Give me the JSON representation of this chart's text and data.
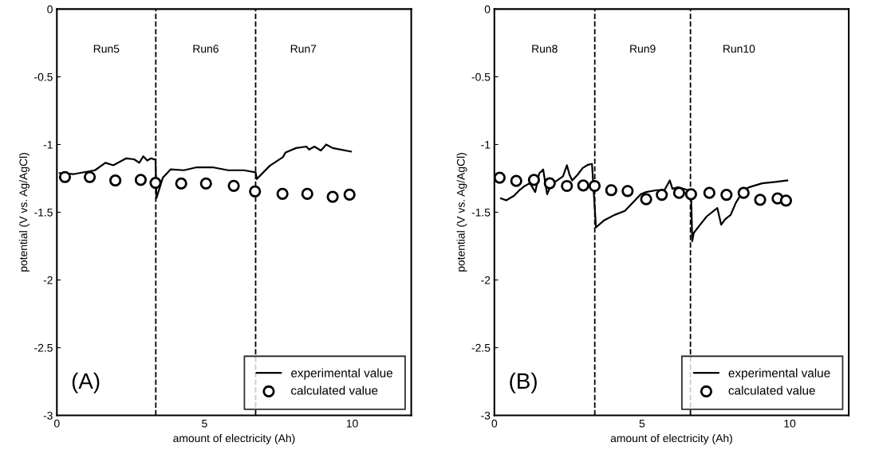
{
  "chart_data": [
    {
      "type": "line",
      "xlabel": "amount of electricity (Ah)",
      "ylabel": "potential (V vs. Ag/AgCl)",
      "xlim": [
        0,
        12
      ],
      "xticks": [
        0,
        5,
        10
      ],
      "ylim": [
        -3,
        0
      ],
      "yticks": [
        -3,
        -2.5,
        -2,
        -1.5,
        -1,
        -0.5,
        0
      ],
      "grid": false,
      "legend": "bottom right",
      "ref_lines": [
        {
          "axis": "x",
          "value": 3.35,
          "color": "#000000",
          "line_style": "dashed"
        },
        {
          "axis": "x",
          "value": 6.73,
          "color": "#000000",
          "line_style": "dashed"
        }
      ],
      "annotations": [
        "Run5",
        "Run6",
        "Run7",
        "(A)"
      ],
      "series": [
        {
          "name": "experimental value",
          "color": "#000000",
          "marker": "none",
          "line_style": "solid",
          "x": [
            0.097,
            0.583,
            1.29,
            1.644,
            1.91,
            2.35,
            2.617,
            2.79,
            2.926,
            3.06,
            3.19,
            3.34,
            3.37,
            3.59,
            3.855,
            4.3,
            4.74,
            5.27,
            5.8,
            6.33,
            6.73,
            6.77,
            7.21,
            7.66,
            7.74,
            8.1,
            8.45,
            8.54,
            8.72,
            8.94,
            9.12,
            9.34,
            9.96
          ],
          "values": [
            -1.211,
            -1.218,
            -1.19,
            -1.135,
            -1.153,
            -1.102,
            -1.109,
            -1.135,
            -1.087,
            -1.118,
            -1.102,
            -1.113,
            -1.397,
            -1.244,
            -1.183,
            -1.19,
            -1.168,
            -1.168,
            -1.19,
            -1.19,
            -1.205,
            -1.255,
            -1.157,
            -1.092,
            -1.059,
            -1.026,
            -1.015,
            -1.037,
            -1.015,
            -1.044,
            -1.0,
            -1.026,
            -1.052
          ]
        },
        {
          "name": "calculated value",
          "type": "scatter",
          "color": "#000000",
          "marker": "circle",
          "x": [
            0.274,
            1.114,
            1.98,
            2.84,
            3.34,
            4.21,
            5.05,
            5.99,
            6.71,
            7.64,
            8.48,
            9.34,
            9.91
          ],
          "values": [
            -1.24,
            -1.24,
            -1.266,
            -1.261,
            -1.283,
            -1.288,
            -1.288,
            -1.305,
            -1.346,
            -1.364,
            -1.364,
            -1.386,
            -1.37
          ]
        }
      ]
    },
    {
      "type": "line",
      "xlabel": "amount of electricity (Ah)",
      "ylabel": "potential (V vs. Ag/AgCl)",
      "xlim": [
        0,
        12
      ],
      "xticks": [
        0,
        5,
        10
      ],
      "ylim": [
        -3,
        0
      ],
      "yticks": [
        -3,
        -2.5,
        -2,
        -1.5,
        -1,
        -0.5,
        0
      ],
      "grid": false,
      "legend": "bottom right",
      "ref_lines": [
        {
          "axis": "x",
          "value": 3.4,
          "color": "#000000",
          "line_style": "dashed"
        },
        {
          "axis": "x",
          "value": 6.64,
          "color": "#000000",
          "line_style": "dashed"
        }
      ],
      "annotations": [
        "Run8",
        "Run9",
        "Run10",
        "(B)"
      ],
      "series": [
        {
          "name": "experimental value",
          "color": "#000000",
          "marker": "none",
          "line_style": "solid",
          "x": [
            0.223,
            0.401,
            0.669,
            0.848,
            1.027,
            1.206,
            1.384,
            1.518,
            1.652,
            1.787,
            1.921,
            2.189,
            2.323,
            2.457,
            2.546,
            2.636,
            2.815,
            2.993,
            3.172,
            3.306,
            3.44,
            3.708,
            4.066,
            4.42,
            4.6,
            4.78,
            4.96,
            5.14,
            5.495,
            5.76,
            5.94,
            6.03,
            6.21,
            6.57,
            6.66,
            6.7,
            6.75,
            6.93,
            7.19,
            7.55,
            7.68,
            7.82,
            8.0,
            8.18,
            8.44,
            8.62,
            9.07,
            9.52,
            9.92
          ],
          "values": [
            -1.398,
            -1.412,
            -1.378,
            -1.337,
            -1.306,
            -1.286,
            -1.351,
            -1.214,
            -1.184,
            -1.367,
            -1.296,
            -1.255,
            -1.235,
            -1.153,
            -1.224,
            -1.265,
            -1.224,
            -1.173,
            -1.149,
            -1.143,
            -1.612,
            -1.561,
            -1.52,
            -1.49,
            -1.449,
            -1.408,
            -1.367,
            -1.351,
            -1.337,
            -1.337,
            -1.265,
            -1.327,
            -1.316,
            -1.337,
            -1.357,
            -1.714,
            -1.653,
            -1.602,
            -1.531,
            -1.469,
            -1.592,
            -1.551,
            -1.52,
            -1.429,
            -1.337,
            -1.316,
            -1.286,
            -1.276,
            -1.265
          ]
        },
        {
          "name": "calculated value",
          "type": "scatter",
          "color": "#000000",
          "marker": "circle",
          "x": [
            0.178,
            0.741,
            1.34,
            1.876,
            2.457,
            3.01,
            3.395,
            3.958,
            4.512,
            5.14,
            5.67,
            6.255,
            6.66,
            7.28,
            7.86,
            8.44,
            9.0,
            9.59,
            9.875
          ],
          "values": [
            -1.245,
            -1.269,
            -1.261,
            -1.286,
            -1.306,
            -1.302,
            -1.306,
            -1.337,
            -1.343,
            -1.404,
            -1.371,
            -1.357,
            -1.367,
            -1.357,
            -1.371,
            -1.357,
            -1.408,
            -1.398,
            -1.414
          ]
        }
      ]
    }
  ]
}
